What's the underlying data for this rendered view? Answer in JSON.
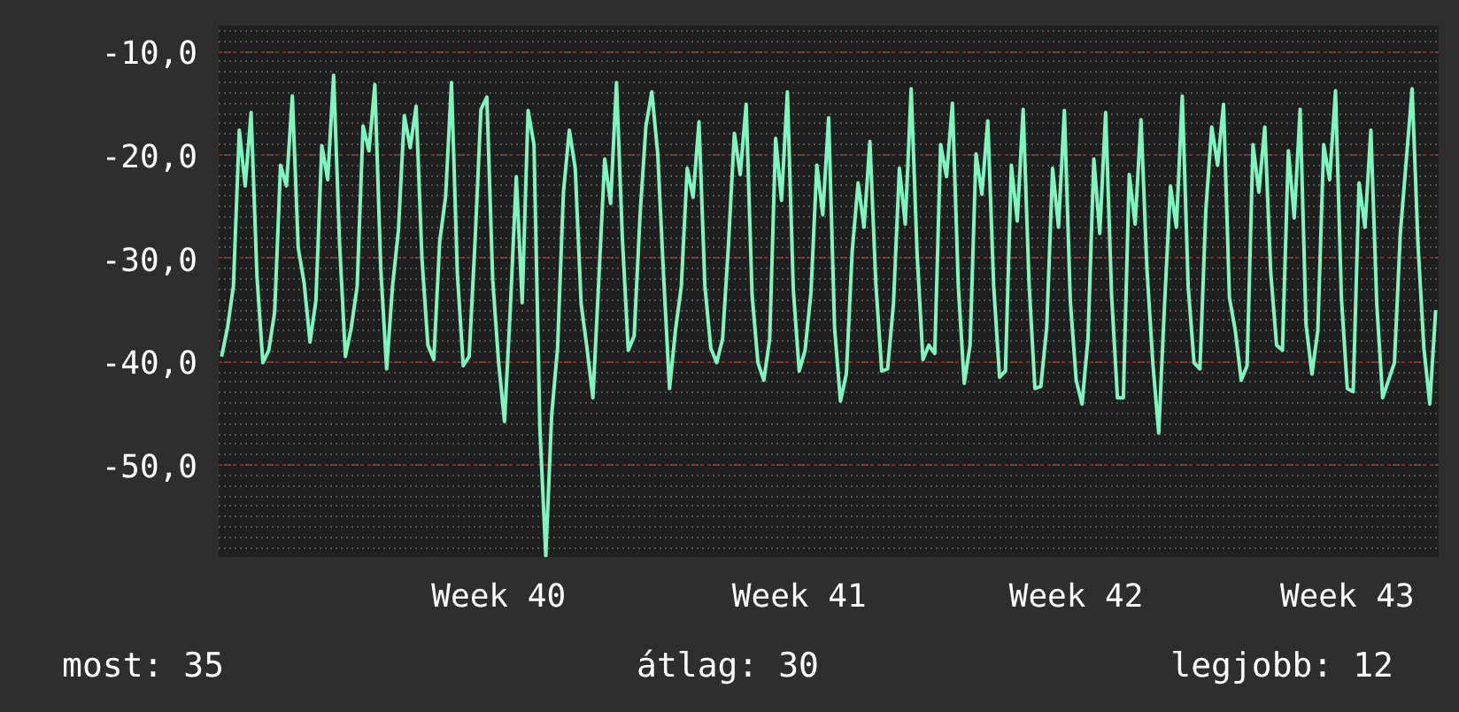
{
  "chart_data": {
    "type": "line",
    "categories": [
      null,
      null,
      null,
      null,
      null,
      null,
      null,
      null,
      null,
      null,
      null,
      null,
      null,
      null,
      null,
      null,
      null,
      null,
      null,
      null,
      null,
      null,
      null,
      null,
      null,
      null,
      null,
      null,
      null,
      null,
      null,
      null,
      null,
      null,
      null,
      null,
      null,
      null,
      null,
      null,
      null,
      null,
      null,
      null,
      null,
      null,
      null,
      "Week 40",
      null,
      null,
      null,
      null,
      null,
      null,
      null,
      null,
      null,
      null,
      null,
      null,
      null,
      null,
      null,
      null,
      null,
      null,
      null,
      null,
      null,
      null,
      null,
      null,
      null,
      null,
      null,
      null,
      null,
      null,
      null,
      null,
      null,
      null,
      null,
      null,
      null,
      null,
      null,
      null,
      null,
      null,
      null,
      null,
      null,
      null,
      null,
      null,
      null,
      null,
      "Week 41",
      null,
      null,
      null,
      null,
      null,
      null,
      null,
      null,
      null,
      null,
      null,
      null,
      null,
      null,
      null,
      null,
      null,
      null,
      null,
      null,
      null,
      null,
      null,
      null,
      null,
      null,
      null,
      null,
      null,
      null,
      null,
      null,
      null,
      null,
      null,
      null,
      null,
      null,
      null,
      null,
      null,
      null,
      null,
      null,
      null,
      null,
      "Week 42",
      null,
      null,
      null,
      null,
      null,
      null,
      null,
      null,
      null,
      null,
      null,
      null,
      null,
      null,
      null,
      null,
      null,
      null,
      null,
      null,
      null,
      null,
      null,
      null,
      null,
      null,
      null,
      null,
      null,
      null,
      null,
      null,
      null,
      null,
      null,
      null,
      null,
      null,
      null,
      null,
      null,
      null,
      null,
      null,
      null,
      "Week 43",
      null,
      null,
      null,
      null,
      null,
      null,
      null,
      null,
      null,
      null,
      null,
      null,
      null,
      null,
      null
    ],
    "series": [
      {
        "color": "#7ff5c0",
        "values": [
          -39.5,
          -36.7,
          -32.7,
          -17.6,
          -23.0,
          -15.9,
          -31.8,
          -40.1,
          -38.9,
          -35.2,
          -21.0,
          -23.0,
          -14.3,
          -29.0,
          -32.4,
          -38.1,
          -34.1,
          -19.1,
          -22.4,
          -12.3,
          -28.4,
          -39.5,
          -36.7,
          -32.7,
          -17.2,
          -19.6,
          -13.2,
          -31.0,
          -40.7,
          -32.7,
          -27.3,
          -16.2,
          -19.3,
          -15.3,
          -30.1,
          -38.4,
          -39.8,
          -28.4,
          -24.1,
          -13.0,
          -31.5,
          -40.4,
          -39.5,
          -28.4,
          -15.6,
          -14.4,
          -32.1,
          -40.1,
          -45.8,
          -34.7,
          -22.1,
          -34.3,
          -15.7,
          -19.0,
          -46.4,
          -58.8,
          -45.2,
          -38.7,
          -23.6,
          -17.6,
          -21.3,
          -34.4,
          -38.7,
          -43.5,
          -32.1,
          -20.4,
          -24.7,
          -13.0,
          -28.1,
          -38.9,
          -37.5,
          -25.8,
          -17.2,
          -13.9,
          -19.9,
          -31.8,
          -42.6,
          -37.0,
          -32.7,
          -21.3,
          -24.1,
          -16.8,
          -32.7,
          -38.7,
          -40.1,
          -37.8,
          -28.7,
          -17.9,
          -21.9,
          -15.1,
          -33.5,
          -40.1,
          -41.8,
          -37.8,
          -18.4,
          -24.4,
          -13.9,
          -33.0,
          -40.9,
          -38.9,
          -33.3,
          -21.0,
          -25.8,
          -16.4,
          -36.7,
          -43.8,
          -41.2,
          -29.3,
          -22.7,
          -27.0,
          -18.7,
          -32.4,
          -40.9,
          -40.7,
          -34.4,
          -21.3,
          -26.7,
          -13.6,
          -29.5,
          -39.8,
          -38.4,
          -39.2,
          -19.0,
          -22.1,
          -15.0,
          -32.7,
          -42.1,
          -38.4,
          -19.9,
          -23.8,
          -16.7,
          -32.7,
          -41.5,
          -40.9,
          -21.0,
          -26.4,
          -15.6,
          -32.4,
          -42.6,
          -42.4,
          -36.7,
          -21.3,
          -27.0,
          -15.7,
          -34.1,
          -41.8,
          -44.1,
          -37.8,
          -20.4,
          -27.6,
          -15.9,
          -33.5,
          -43.5,
          -43.5,
          -21.9,
          -26.7,
          -16.6,
          -31.0,
          -40.1,
          -46.9,
          -34.4,
          -23.0,
          -27.0,
          -14.3,
          -32.7,
          -40.1,
          -40.7,
          -25.3,
          -17.3,
          -21.0,
          -15.1,
          -33.8,
          -37.0,
          -41.8,
          -40.4,
          -19.0,
          -23.6,
          -17.3,
          -31.3,
          -38.4,
          -38.9,
          -19.6,
          -26.1,
          -15.6,
          -36.4,
          -41.2,
          -37.0,
          -19.0,
          -22.4,
          -13.8,
          -33.8,
          -42.6,
          -42.9,
          -22.7,
          -27.0,
          -17.6,
          -34.4,
          -43.5,
          -41.8,
          -40.1,
          -27.6,
          -20.6,
          -13.6,
          -28.7,
          -38.7,
          -44.1,
          -35.0
        ]
      }
    ],
    "ylim": [
      -58.9,
      -7.5
    ],
    "yticks": [
      {
        "value": -10,
        "label": "-10,0"
      },
      {
        "value": -20,
        "label": "-20,0"
      },
      {
        "value": -30,
        "label": "-30,0"
      },
      {
        "value": -40,
        "label": "-40,0"
      },
      {
        "value": -50,
        "label": "-50,0"
      }
    ],
    "grid": "y",
    "line_style": "solid",
    "annotations": [
      "most: 35",
      "átlag: 30",
      "legjobb: 12"
    ]
  }
}
